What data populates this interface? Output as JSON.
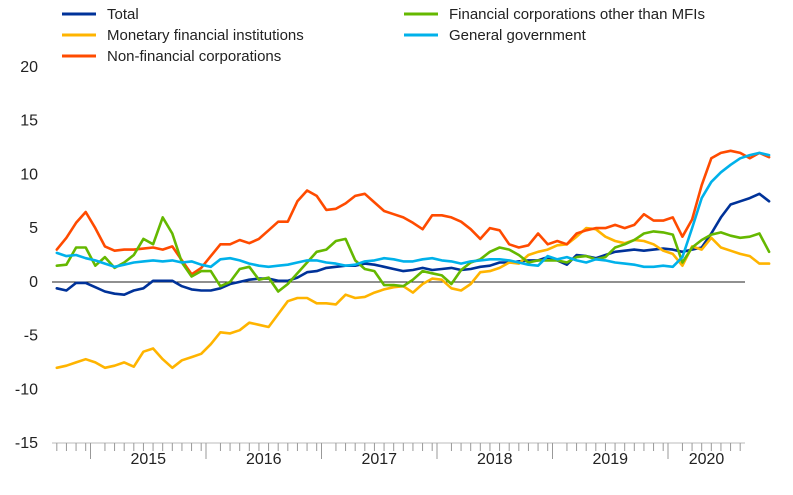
{
  "chart_data": {
    "type": "line",
    "title": "",
    "xlabel": "",
    "ylabel": "",
    "ylim": [
      -15,
      20
    ],
    "yticks": [
      -15,
      -10,
      -5,
      0,
      5,
      10,
      15,
      20
    ],
    "year_labels": [
      "2015",
      "2016",
      "2017",
      "2018",
      "2019",
      "2020"
    ],
    "x_start": "2014-09",
    "x_end": "2020-08",
    "grid": false,
    "legend": "top, two columns",
    "series": [
      {
        "name": "Total",
        "color": "#003299",
        "values": [
          -0.6,
          -0.8,
          -0.1,
          -0.1,
          -0.5,
          -0.9,
          -1.1,
          -1.2,
          -0.8,
          -0.6,
          0.1,
          0.1,
          0.1,
          -0.4,
          -0.7,
          -0.8,
          -0.8,
          -0.6,
          -0.2,
          0.0,
          0.2,
          0.3,
          0.3,
          0.1,
          0.1,
          0.4,
          0.9,
          1.0,
          1.3,
          1.4,
          1.5,
          1.5,
          1.7,
          1.6,
          1.4,
          1.2,
          1.0,
          1.1,
          1.3,
          1.1,
          1.2,
          1.3,
          1.1,
          1.2,
          1.4,
          1.5,
          1.8,
          1.8,
          1.9,
          2.0,
          2.0,
          2.3,
          2.0,
          1.6,
          2.5,
          2.4,
          2.2,
          2.5,
          2.8,
          2.9,
          3.0,
          2.9,
          3.0,
          3.1,
          3.0,
          2.8,
          3.0,
          3.2,
          4.5,
          6.0,
          7.2,
          7.5,
          7.8,
          8.2,
          7.5
        ]
      },
      {
        "name": "Monetary financial institutions",
        "color": "#FFB400",
        "values": [
          -8.0,
          -7.8,
          -7.5,
          -7.2,
          -7.5,
          -8.0,
          -7.8,
          -7.5,
          -7.9,
          -6.5,
          -6.2,
          -7.2,
          -8.0,
          -7.3,
          -7.0,
          -6.7,
          -5.8,
          -4.7,
          -4.8,
          -4.5,
          -3.8,
          -4.0,
          -4.2,
          -3.0,
          -1.8,
          -1.5,
          -1.5,
          -2.0,
          -2.0,
          -2.1,
          -1.2,
          -1.5,
          -1.4,
          -1.0,
          -0.7,
          -0.5,
          -0.4,
          -1.0,
          -0.2,
          0.3,
          0.2,
          -0.6,
          -0.8,
          -0.2,
          0.9,
          1.0,
          1.3,
          1.8,
          1.7,
          2.5,
          2.8,
          3.0,
          3.4,
          3.5,
          4.2,
          5.0,
          4.9,
          4.2,
          3.8,
          3.6,
          3.9,
          3.8,
          3.5,
          2.9,
          2.6,
          1.5,
          3.3,
          3.0,
          4.1,
          3.2,
          2.9,
          2.6,
          2.4,
          1.7,
          1.7
        ]
      },
      {
        "name": "Non-financial corporations",
        "color": "#FF4B00",
        "values": [
          3.0,
          4.1,
          5.5,
          6.5,
          5.0,
          3.3,
          2.9,
          3.0,
          3.0,
          3.1,
          3.2,
          3.0,
          3.3,
          2.0,
          0.7,
          1.3,
          2.4,
          3.5,
          3.5,
          3.9,
          3.6,
          4.0,
          4.8,
          5.6,
          5.6,
          7.5,
          8.5,
          8.0,
          6.7,
          6.8,
          7.3,
          8.0,
          8.2,
          7.4,
          6.6,
          6.3,
          6.0,
          5.5,
          4.9,
          6.2,
          6.2,
          6.0,
          5.6,
          4.9,
          4.0,
          5.0,
          4.8,
          3.5,
          3.2,
          3.4,
          4.5,
          3.5,
          3.8,
          3.5,
          4.5,
          4.8,
          5.0,
          5.0,
          5.3,
          5.0,
          5.3,
          6.3,
          5.7,
          5.7,
          6.0,
          4.2,
          5.8,
          9.0,
          11.5,
          12.0,
          12.2,
          12.0,
          11.5,
          12.0,
          11.6
        ]
      },
      {
        "name": "Financial corporations other than MFIs",
        "color": "#65B800",
        "values": [
          1.5,
          1.6,
          3.2,
          3.2,
          1.5,
          2.3,
          1.3,
          1.8,
          2.5,
          4.0,
          3.5,
          6.0,
          4.5,
          1.8,
          0.5,
          1.0,
          1.0,
          -0.4,
          0.0,
          1.2,
          1.4,
          0.2,
          0.4,
          -0.9,
          -0.2,
          0.8,
          1.8,
          2.8,
          3.0,
          3.8,
          4.0,
          2.0,
          1.2,
          1.0,
          -0.3,
          -0.3,
          -0.4,
          0.2,
          1.0,
          0.8,
          0.6,
          -0.2,
          1.1,
          1.8,
          2.1,
          2.8,
          3.2,
          3.0,
          2.5,
          1.8,
          2.0,
          2.0,
          2.0,
          1.8,
          2.3,
          2.4,
          2.1,
          2.3,
          3.2,
          3.5,
          3.9,
          4.5,
          4.7,
          4.6,
          4.4,
          1.8,
          3.2,
          3.9,
          4.4,
          4.6,
          4.3,
          4.1,
          4.2,
          4.5,
          2.8
        ]
      },
      {
        "name": "General government",
        "color": "#00B1EA",
        "values": [
          2.7,
          2.4,
          2.5,
          2.2,
          2.0,
          1.7,
          1.4,
          1.6,
          1.8,
          1.9,
          2.0,
          1.9,
          2.0,
          1.8,
          1.9,
          1.6,
          1.4,
          2.1,
          2.2,
          2.0,
          1.7,
          1.5,
          1.4,
          1.5,
          1.6,
          1.8,
          2.0,
          2.0,
          1.8,
          1.7,
          1.5,
          1.6,
          1.9,
          2.0,
          2.2,
          2.1,
          1.9,
          1.9,
          2.1,
          2.2,
          2.0,
          1.9,
          1.7,
          1.9,
          2.0,
          2.1,
          2.1,
          2.0,
          1.8,
          1.6,
          1.5,
          2.4,
          2.1,
          2.3,
          2.0,
          1.8,
          2.1,
          2.0,
          1.8,
          1.7,
          1.6,
          1.4,
          1.4,
          1.5,
          1.4,
          2.3,
          5.0,
          7.8,
          9.3,
          10.2,
          10.9,
          11.5,
          11.8,
          12.0,
          11.8
        ]
      }
    ]
  }
}
